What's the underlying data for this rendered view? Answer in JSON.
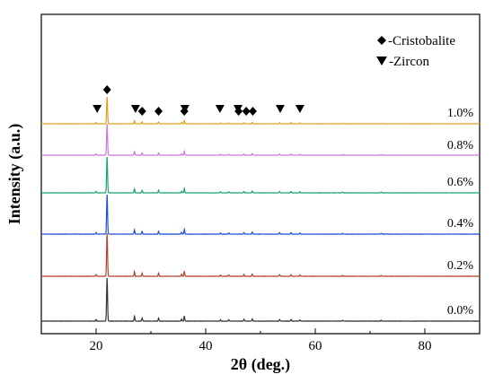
{
  "chart_data": {
    "type": "line",
    "xlabel": "2θ (deg.)",
    "ylabel": "Intensity (a.u.)",
    "xlim": [
      10,
      90
    ],
    "x_ticks": [
      20,
      40,
      60,
      80
    ],
    "grid": false,
    "legend": {
      "position": "top-right",
      "entries": [
        {
          "marker": "diamond",
          "label": "-Cristobalite"
        },
        {
          "marker": "down-triangle",
          "label": "-Zircon"
        }
      ]
    },
    "series": [
      {
        "name": "1.0%",
        "color": "#e0a01e"
      },
      {
        "name": "0.8%",
        "color": "#cc77dd"
      },
      {
        "name": "0.6%",
        "color": "#1aa36a"
      },
      {
        "name": "0.4%",
        "color": "#1f4fd1"
      },
      {
        "name": "0.2%",
        "color": "#b5402e"
      },
      {
        "name": "0.0%",
        "color": "#333333"
      }
    ],
    "peaks": [
      {
        "two_theta": 20.0,
        "height": 0.04
      },
      {
        "two_theta": 22.0,
        "height": 1.0
      },
      {
        "two_theta": 27.0,
        "height": 0.11
      },
      {
        "two_theta": 28.4,
        "height": 0.07
      },
      {
        "two_theta": 31.4,
        "height": 0.07
      },
      {
        "two_theta": 35.6,
        "height": 0.05
      },
      {
        "two_theta": 36.1,
        "height": 0.12
      },
      {
        "two_theta": 42.7,
        "height": 0.03
      },
      {
        "two_theta": 44.2,
        "height": 0.03
      },
      {
        "two_theta": 47.0,
        "height": 0.04
      },
      {
        "two_theta": 48.5,
        "height": 0.05
      },
      {
        "two_theta": 53.5,
        "height": 0.04
      },
      {
        "two_theta": 55.6,
        "height": 0.04
      },
      {
        "two_theta": 57.2,
        "height": 0.03
      },
      {
        "two_theta": 65.0,
        "height": 0.02
      },
      {
        "two_theta": 72.0,
        "height": 0.02
      }
    ],
    "markers": {
      "diamond": [
        22.0,
        28.4,
        31.4,
        36.1,
        46.0,
        47.4,
        48.6
      ],
      "down-triangle": [
        20.2,
        27.2,
        36.2,
        42.6,
        45.9,
        53.6,
        57.2
      ]
    }
  }
}
